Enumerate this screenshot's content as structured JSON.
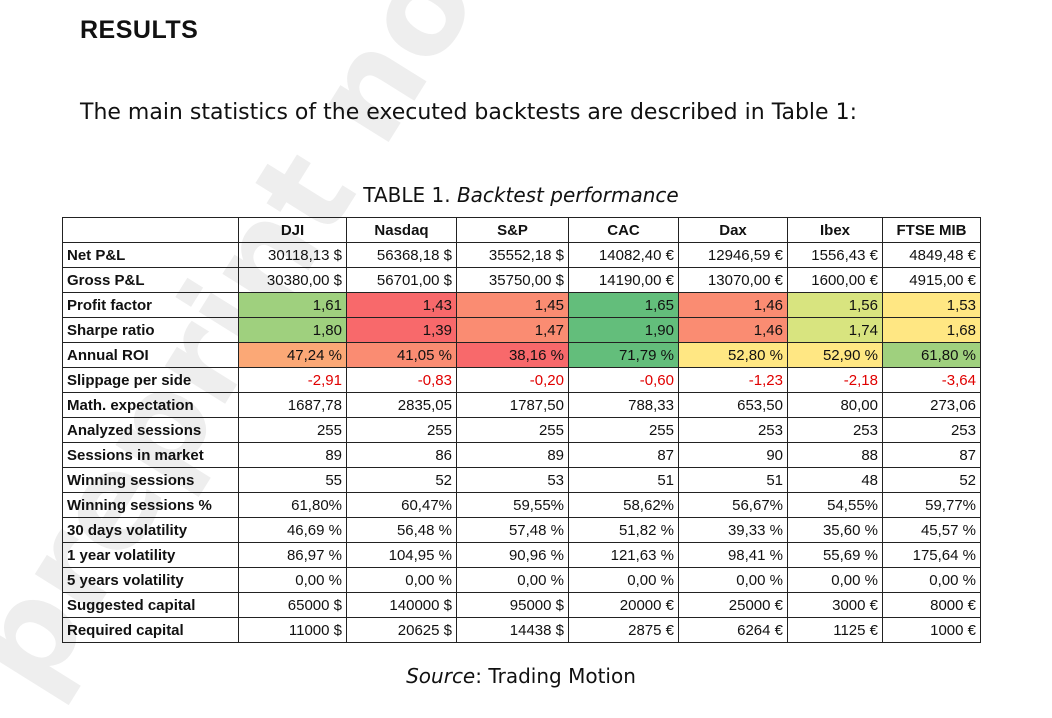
{
  "section_title": "RESULTS",
  "intro_text": "The main statistics of the executed backtests are described in Table 1:",
  "caption": {
    "prefix": "TABLE 1. ",
    "title": "Backtest performance"
  },
  "source": {
    "label": "Source",
    "rest": ": Trading Motion"
  },
  "watermark_text": "preprint not peer",
  "colors": {
    "dark_green": "#63be7b",
    "green": "#9fd07e",
    "lime": "#d8e47f",
    "yellow": "#ffe783",
    "orange": "#fba876",
    "salmon": "#fa8c72",
    "red": "#f8696b",
    "negative_text": "#e00000"
  },
  "table": {
    "columns": [
      "",
      "DJI",
      "Nasdaq",
      "S&P",
      "CAC",
      "Dax",
      "Ibex",
      "FTSE MIB"
    ],
    "rows": [
      {
        "label": "Net P&L",
        "cells": [
          "30118,13 $",
          "56368,18 $",
          "35552,18 $",
          "14082,40 €",
          "12946,59 €",
          "1556,43 €",
          "4849,48 €"
        ],
        "colors": [],
        "negative": false
      },
      {
        "label": "Gross P&L",
        "cells": [
          "30380,00 $",
          "56701,00 $",
          "35750,00 $",
          "14190,00 €",
          "13070,00 €",
          "1600,00 €",
          "4915,00 €"
        ],
        "colors": [],
        "negative": false
      },
      {
        "label": "Profit factor",
        "cells": [
          "1,61",
          "1,43",
          "1,45",
          "1,65",
          "1,46",
          "1,56",
          "1,53"
        ],
        "colors": [
          "#9fd07e",
          "#f8696b",
          "#fa8c72",
          "#63be7b",
          "#fa8c72",
          "#d8e47f",
          "#ffe783"
        ],
        "negative": false
      },
      {
        "label": "Sharpe ratio",
        "cells": [
          "1,80",
          "1,39",
          "1,47",
          "1,90",
          "1,46",
          "1,74",
          "1,68"
        ],
        "colors": [
          "#9fd07e",
          "#f8696b",
          "#fa8c72",
          "#63be7b",
          "#fa8c72",
          "#d8e47f",
          "#ffe783"
        ],
        "negative": false
      },
      {
        "label": "Annual ROI",
        "cells": [
          "47,24 %",
          "41,05 %",
          "38,16 %",
          "71,79 %",
          "52,80 %",
          "52,90 %",
          "61,80 %"
        ],
        "colors": [
          "#fba876",
          "#fa8c72",
          "#f8696b",
          "#63be7b",
          "#ffe783",
          "#ffe783",
          "#9fd07e"
        ],
        "negative": false
      },
      {
        "label": "Slippage per side",
        "cells": [
          "-2,91",
          "-0,83",
          "-0,20",
          "-0,60",
          "-1,23",
          "-2,18",
          "-3,64"
        ],
        "colors": [],
        "negative": true
      },
      {
        "label": "Math. expectation",
        "cells": [
          "1687,78",
          "2835,05",
          "1787,50",
          "788,33",
          "653,50",
          "80,00",
          "273,06"
        ],
        "colors": [],
        "negative": false
      },
      {
        "label": "Analyzed sessions",
        "cells": [
          "255",
          "255",
          "255",
          "255",
          "253",
          "253",
          "253"
        ],
        "colors": [],
        "negative": false
      },
      {
        "label": "Sessions in market",
        "cells": [
          "89",
          "86",
          "89",
          "87",
          "90",
          "88",
          "87"
        ],
        "colors": [],
        "negative": false
      },
      {
        "label": "Winning sessions",
        "cells": [
          "55",
          "52",
          "53",
          "51",
          "51",
          "48",
          "52"
        ],
        "colors": [],
        "negative": false
      },
      {
        "label": "Winning sessions %",
        "cells": [
          "61,80%",
          "60,47%",
          "59,55%",
          "58,62%",
          "56,67%",
          "54,55%",
          "59,77%"
        ],
        "colors": [],
        "negative": false
      },
      {
        "label": "30 days volatility",
        "cells": [
          "46,69 %",
          "56,48 %",
          "57,48 %",
          "51,82 %",
          "39,33 %",
          "35,60 %",
          "45,57 %"
        ],
        "colors": [],
        "negative": false
      },
      {
        "label": "1 year volatility",
        "cells": [
          "86,97 %",
          "104,95 %",
          "90,96 %",
          "121,63 %",
          "98,41 %",
          "55,69 %",
          "175,64 %"
        ],
        "colors": [],
        "negative": false
      },
      {
        "label": "5 years volatility",
        "cells": [
          "0,00 %",
          "0,00 %",
          "0,00 %",
          "0,00 %",
          "0,00 %",
          "0,00 %",
          "0,00 %"
        ],
        "colors": [],
        "negative": false
      },
      {
        "label": "Suggested capital",
        "cells": [
          "65000 $",
          "140000 $",
          "95000 $",
          "20000 €",
          "25000 €",
          "3000 €",
          "8000 €"
        ],
        "colors": [],
        "negative": false
      },
      {
        "label": "Required capital",
        "cells": [
          "11000 $",
          "20625 $",
          "14438 $",
          "2875 €",
          "6264 €",
          "1125 €",
          "1000 €"
        ],
        "colors": [],
        "negative": false
      }
    ]
  }
}
